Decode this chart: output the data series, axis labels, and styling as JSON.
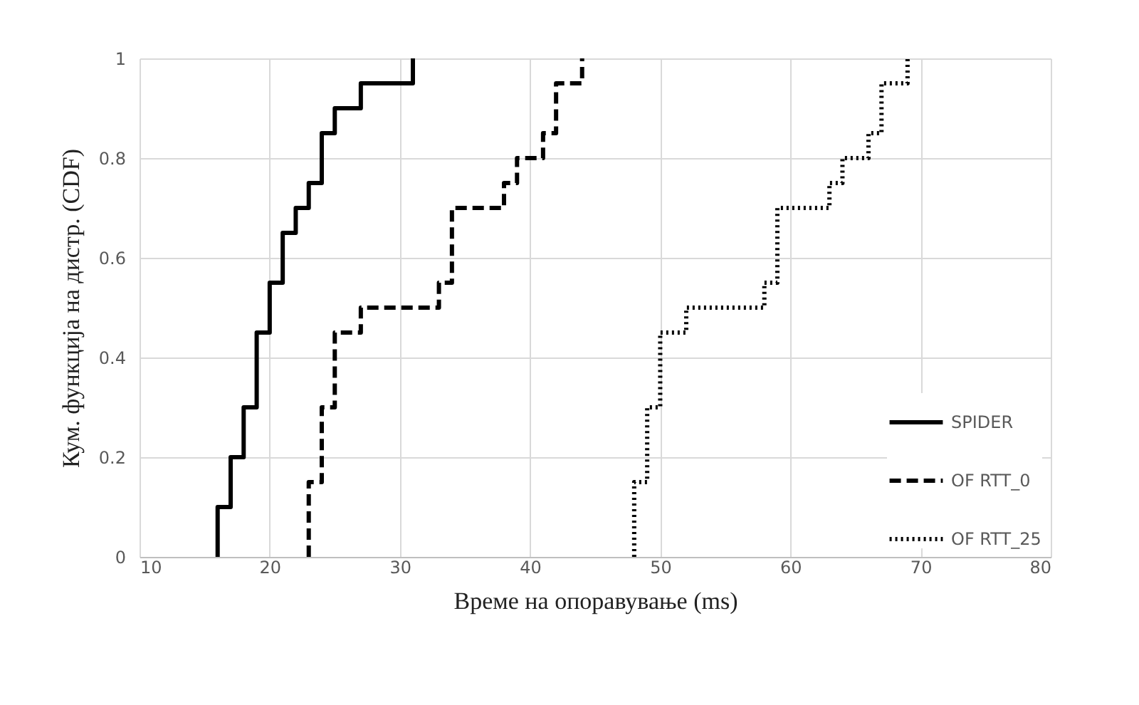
{
  "chart_data": {
    "type": "step",
    "xlabel": "Време на опоравување (ms)",
    "ylabel": "Кум. функција на дистр. (CDF)",
    "xlim": [
      10,
      80
    ],
    "xticks": [
      10,
      20,
      30,
      40,
      50,
      60,
      70,
      80
    ],
    "ylim": [
      0,
      1
    ],
    "yticks": [
      0,
      0.2,
      0.4,
      0.6,
      0.8,
      1
    ],
    "grid": true,
    "legend": "bottom right",
    "series": [
      {
        "name": "SPIDER",
        "color": "#000000",
        "line_style": "solid",
        "x": [
          16,
          16,
          17,
          18,
          19,
          20,
          21,
          22,
          23,
          24,
          25,
          27,
          31
        ],
        "values": [
          0,
          0.1,
          0.2,
          0.3,
          0.45,
          0.55,
          0.65,
          0.7,
          0.75,
          0.85,
          0.9,
          0.95,
          1
        ]
      },
      {
        "name": "OF RTT_0",
        "color": "#000000",
        "line_style": "dashed",
        "x": [
          23,
          23,
          24,
          25,
          27,
          33,
          34,
          38,
          39,
          41,
          42,
          44
        ],
        "values": [
          0,
          0.15,
          0.3,
          0.45,
          0.5,
          0.55,
          0.7,
          0.75,
          0.8,
          0.85,
          0.95,
          1
        ]
      },
      {
        "name": "OF RTT_25",
        "color": "#000000",
        "line_style": "dotted",
        "x": [
          48,
          48,
          49,
          50,
          52,
          58,
          59,
          63,
          64,
          66,
          67,
          69
        ],
        "values": [
          0,
          0.15,
          0.3,
          0.45,
          0.5,
          0.55,
          0.7,
          0.75,
          0.8,
          0.85,
          0.95,
          1
        ]
      }
    ]
  }
}
